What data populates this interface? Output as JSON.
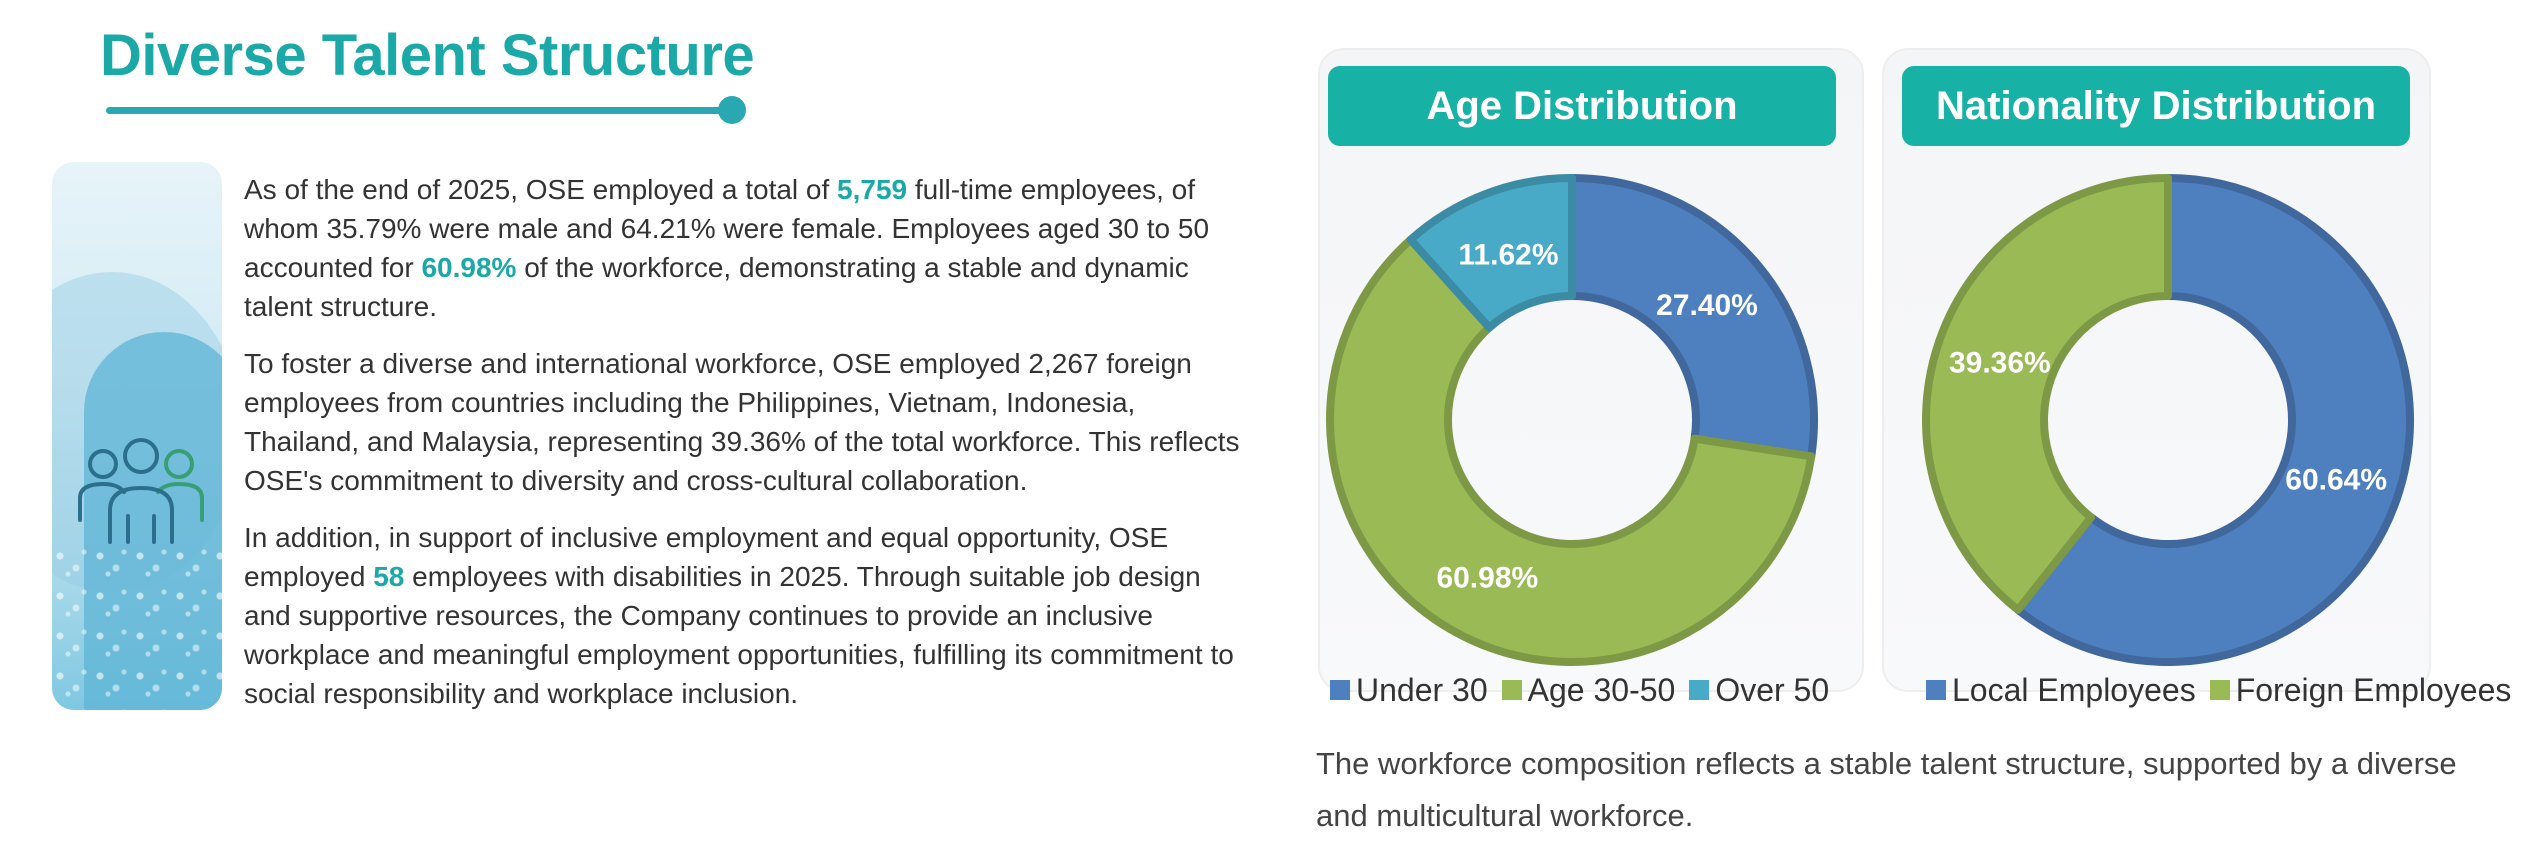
{
  "header": {
    "title": "Diverse Talent Structure"
  },
  "body": {
    "p1": {
      "a": "As of the end of 2025, OSE employed a total of ",
      "b": "5,759",
      "c": " full-time employees, of whom 35.79% were male and 64.21% were female. Employees aged 30 to 50 accounted for ",
      "d": "60.98%",
      "e": " of the workforce, demonstrating a stable and dynamic talent structure."
    },
    "p2": "To foster a diverse and international workforce, OSE employed 2,267 foreign employees from countries including the Philippines, Vietnam, Indonesia, Thailand, and Malaysia, representing 39.36% of the total workforce. This reflects OSE's commitment to diversity and cross-cultural collaboration.",
    "p3": {
      "a": "In addition, in support of inclusive employment and equal opportunity, OSE employed ",
      "b": "58",
      "c": " employees with disabilities in 2025. Through suitable job design and supportive resources, the Company continues to provide an inclusive workplace and meaningful employment opportunities, fulfilling its commitment to social responsibility and workplace inclusion."
    }
  },
  "icons": {
    "decor": "people-group-icon"
  },
  "colors": {
    "accent": "#1aa9a6",
    "header_bg": "#17b1a6",
    "blue": "#4e7fbf",
    "green": "#9aba55",
    "teal": "#49aac8"
  },
  "chart_data": [
    {
      "type": "pie",
      "donut": true,
      "title": "Age Distribution",
      "categories": [
        "Under 30",
        "Age 30-50",
        "Over 50"
      ],
      "values": [
        27.4,
        60.98,
        11.62
      ],
      "value_labels": [
        "27.40%",
        "60.98%",
        "11.62%"
      ],
      "colors": [
        "#4e7fbf",
        "#9aba55",
        "#49aac8"
      ],
      "legend": "bottom"
    },
    {
      "type": "pie",
      "donut": true,
      "title": "Nationality Distribution",
      "categories": [
        "Local Employees",
        "Foreign Employees"
      ],
      "values": [
        60.64,
        39.36
      ],
      "value_labels": [
        "60.64%",
        "39.36%"
      ],
      "colors": [
        "#4e7fbf",
        "#9aba55"
      ],
      "legend": "bottom"
    }
  ],
  "caption": "The workforce composition reflects a stable talent structure, supported by a diverse and multicultural workforce."
}
